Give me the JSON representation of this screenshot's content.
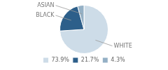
{
  "chart_data": {
    "type": "pie",
    "categories": [
      "73.9%",
      "21.7%",
      "4.3%"
    ],
    "values": [
      73.9,
      21.7,
      4.3
    ],
    "colors": [
      "#cddce8",
      "#2d5f8a",
      "#94b0c5"
    ],
    "annotations": [
      "WHITE",
      "BLACK",
      "ASIAN"
    ],
    "legend": "bottom"
  }
}
